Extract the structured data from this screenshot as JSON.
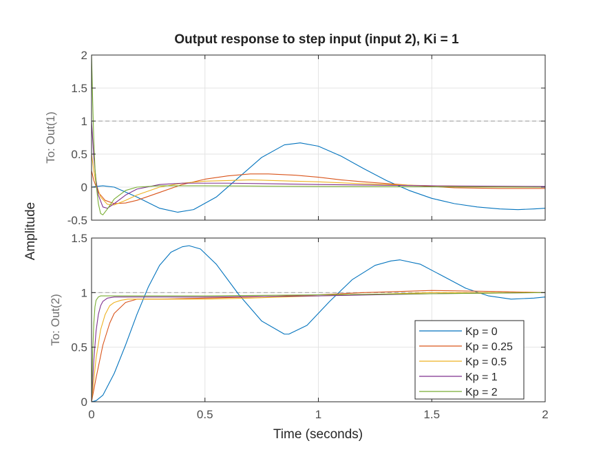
{
  "chart_data": {
    "type": "line",
    "title": "Output response to step input (input 2), Ki = 1",
    "xlabel": "Time (seconds)",
    "ylabel": "Amplitude",
    "xlim": [
      0,
      2
    ],
    "x_ticks": [
      "0",
      "0.5",
      "1",
      "1.5",
      "2"
    ],
    "grid": true,
    "legend_position": "bottom-right of lower panel",
    "series_colors": [
      "#0072BD",
      "#D95319",
      "#EDB120",
      "#7E2F8E",
      "#77AC30"
    ],
    "legend": [
      "Kp = 0",
      "Kp = 0.25",
      "Kp = 0.5",
      "Kp = 1",
      "Kp = 2"
    ],
    "panels": [
      {
        "label": "To: Out(1)",
        "ylim": [
          -0.5,
          2
        ],
        "y_ticks": [
          "-0.5",
          "0",
          "0.5",
          "1",
          "1.5",
          "2"
        ],
        "reference_line": 1,
        "series": [
          {
            "name": "Kp = 0",
            "x": [
              0,
              0.02,
              0.05,
              0.1,
              0.2,
              0.3,
              0.38,
              0.45,
              0.55,
              0.65,
              0.75,
              0.85,
              0.92,
              1.0,
              1.1,
              1.2,
              1.3,
              1.4,
              1.5,
              1.6,
              1.7,
              1.8,
              1.88,
              1.95,
              2.0
            ],
            "y": [
              0,
              0.01,
              0.02,
              0.0,
              -0.15,
              -0.32,
              -0.38,
              -0.34,
              -0.15,
              0.15,
              0.45,
              0.64,
              0.67,
              0.62,
              0.47,
              0.28,
              0.1,
              -0.05,
              -0.17,
              -0.25,
              -0.3,
              -0.33,
              -0.34,
              -0.33,
              -0.32
            ]
          },
          {
            "name": "Kp = 0.25",
            "x": [
              0,
              0.01,
              0.03,
              0.06,
              0.1,
              0.15,
              0.2,
              0.3,
              0.4,
              0.5,
              0.6,
              0.7,
              0.78,
              0.9,
              1.0,
              1.1,
              1.2,
              1.4,
              1.6,
              1.8,
              2.0
            ],
            "y": [
              0.25,
              0.1,
              -0.08,
              -0.2,
              -0.25,
              -0.24,
              -0.2,
              -0.08,
              0.04,
              0.12,
              0.17,
              0.2,
              0.2,
              0.18,
              0.15,
              0.11,
              0.08,
              0.03,
              -0.01,
              -0.02,
              -0.02
            ]
          },
          {
            "name": "Kp = 0.5",
            "x": [
              0,
              0.01,
              0.02,
              0.04,
              0.07,
              0.1,
              0.15,
              0.2,
              0.3,
              0.4,
              0.5,
              0.6,
              0.7,
              0.8,
              1.0,
              1.2,
              1.5,
              2.0
            ],
            "y": [
              0.5,
              0.25,
              0.05,
              -0.15,
              -0.26,
              -0.27,
              -0.2,
              -0.12,
              0.0,
              0.06,
              0.09,
              0.1,
              0.11,
              0.1,
              0.08,
              0.05,
              0.02,
              0.0
            ]
          },
          {
            "name": "Kp = 1",
            "x": [
              0,
              0.01,
              0.02,
              0.03,
              0.05,
              0.07,
              0.1,
              0.15,
              0.2,
              0.3,
              0.4,
              0.6,
              0.8,
              1.0,
              1.5,
              2.0
            ],
            "y": [
              1.0,
              0.45,
              0.1,
              -0.12,
              -0.3,
              -0.32,
              -0.25,
              -0.12,
              -0.03,
              0.04,
              0.06,
              0.06,
              0.05,
              0.04,
              0.02,
              0.01
            ]
          },
          {
            "name": "Kp = 2",
            "x": [
              0,
              0.005,
              0.01,
              0.015,
              0.02,
              0.03,
              0.04,
              0.05,
              0.07,
              0.1,
              0.15,
              0.2,
              0.3,
              0.5,
              1.0,
              2.0
            ],
            "y": [
              2.0,
              1.3,
              0.7,
              0.3,
              0.05,
              -0.25,
              -0.4,
              -0.42,
              -0.33,
              -0.18,
              -0.05,
              0.0,
              0.02,
              0.02,
              0.01,
              0.0
            ]
          }
        ]
      },
      {
        "label": "To: Out(2)",
        "ylim": [
          0,
          1.5
        ],
        "y_ticks": [
          "0",
          "0.5",
          "1",
          "1.5"
        ],
        "reference_line": 1,
        "series": [
          {
            "name": "Kp = 0",
            "x": [
              0,
              0.02,
              0.05,
              0.1,
              0.15,
              0.2,
              0.25,
              0.3,
              0.35,
              0.4,
              0.43,
              0.48,
              0.55,
              0.65,
              0.75,
              0.85,
              0.87,
              0.95,
              1.05,
              1.15,
              1.25,
              1.32,
              1.36,
              1.45,
              1.55,
              1.65,
              1.75,
              1.85,
              1.95,
              2.0
            ],
            "y": [
              0,
              0.01,
              0.06,
              0.26,
              0.52,
              0.8,
              1.05,
              1.25,
              1.37,
              1.42,
              1.43,
              1.4,
              1.26,
              0.98,
              0.74,
              0.62,
              0.62,
              0.7,
              0.92,
              1.12,
              1.25,
              1.29,
              1.3,
              1.26,
              1.15,
              1.04,
              0.97,
              0.94,
              0.95,
              0.96
            ]
          },
          {
            "name": "Kp = 0.25",
            "x": [
              0,
              0.02,
              0.05,
              0.08,
              0.1,
              0.15,
              0.2,
              0.3,
              0.5,
              0.7,
              1.0,
              1.2,
              1.5,
              1.8,
              2.0
            ],
            "y": [
              0,
              0.22,
              0.52,
              0.72,
              0.81,
              0.91,
              0.94,
              0.94,
              0.95,
              0.96,
              0.98,
              1.0,
              1.02,
              1.01,
              1.0
            ]
          },
          {
            "name": "Kp = 0.5",
            "x": [
              0,
              0.02,
              0.04,
              0.06,
              0.08,
              0.1,
              0.13,
              0.16,
              0.2,
              0.3,
              0.5,
              0.7,
              1.0,
              1.5,
              2.0
            ],
            "y": [
              0,
              0.4,
              0.66,
              0.8,
              0.88,
              0.91,
              0.93,
              0.94,
              0.94,
              0.94,
              0.94,
              0.95,
              0.97,
              1.0,
              1.0
            ]
          },
          {
            "name": "Kp = 1",
            "x": [
              0,
              0.01,
              0.02,
              0.03,
              0.04,
              0.05,
              0.07,
              0.1,
              0.15,
              0.2,
              0.3,
              0.5,
              1.0,
              1.5,
              2.0
            ],
            "y": [
              0,
              0.38,
              0.65,
              0.8,
              0.88,
              0.92,
              0.95,
              0.96,
              0.96,
              0.96,
              0.96,
              0.96,
              0.97,
              0.99,
              1.0
            ]
          },
          {
            "name": "Kp = 2",
            "x": [
              0,
              0.005,
              0.01,
              0.015,
              0.02,
              0.03,
              0.04,
              0.05,
              0.07,
              0.1,
              0.2,
              0.5,
              1.0,
              2.0
            ],
            "y": [
              0,
              0.45,
              0.72,
              0.87,
              0.93,
              0.96,
              0.97,
              0.97,
              0.97,
              0.97,
              0.97,
              0.97,
              0.98,
              1.0
            ]
          }
        ]
      }
    ]
  }
}
